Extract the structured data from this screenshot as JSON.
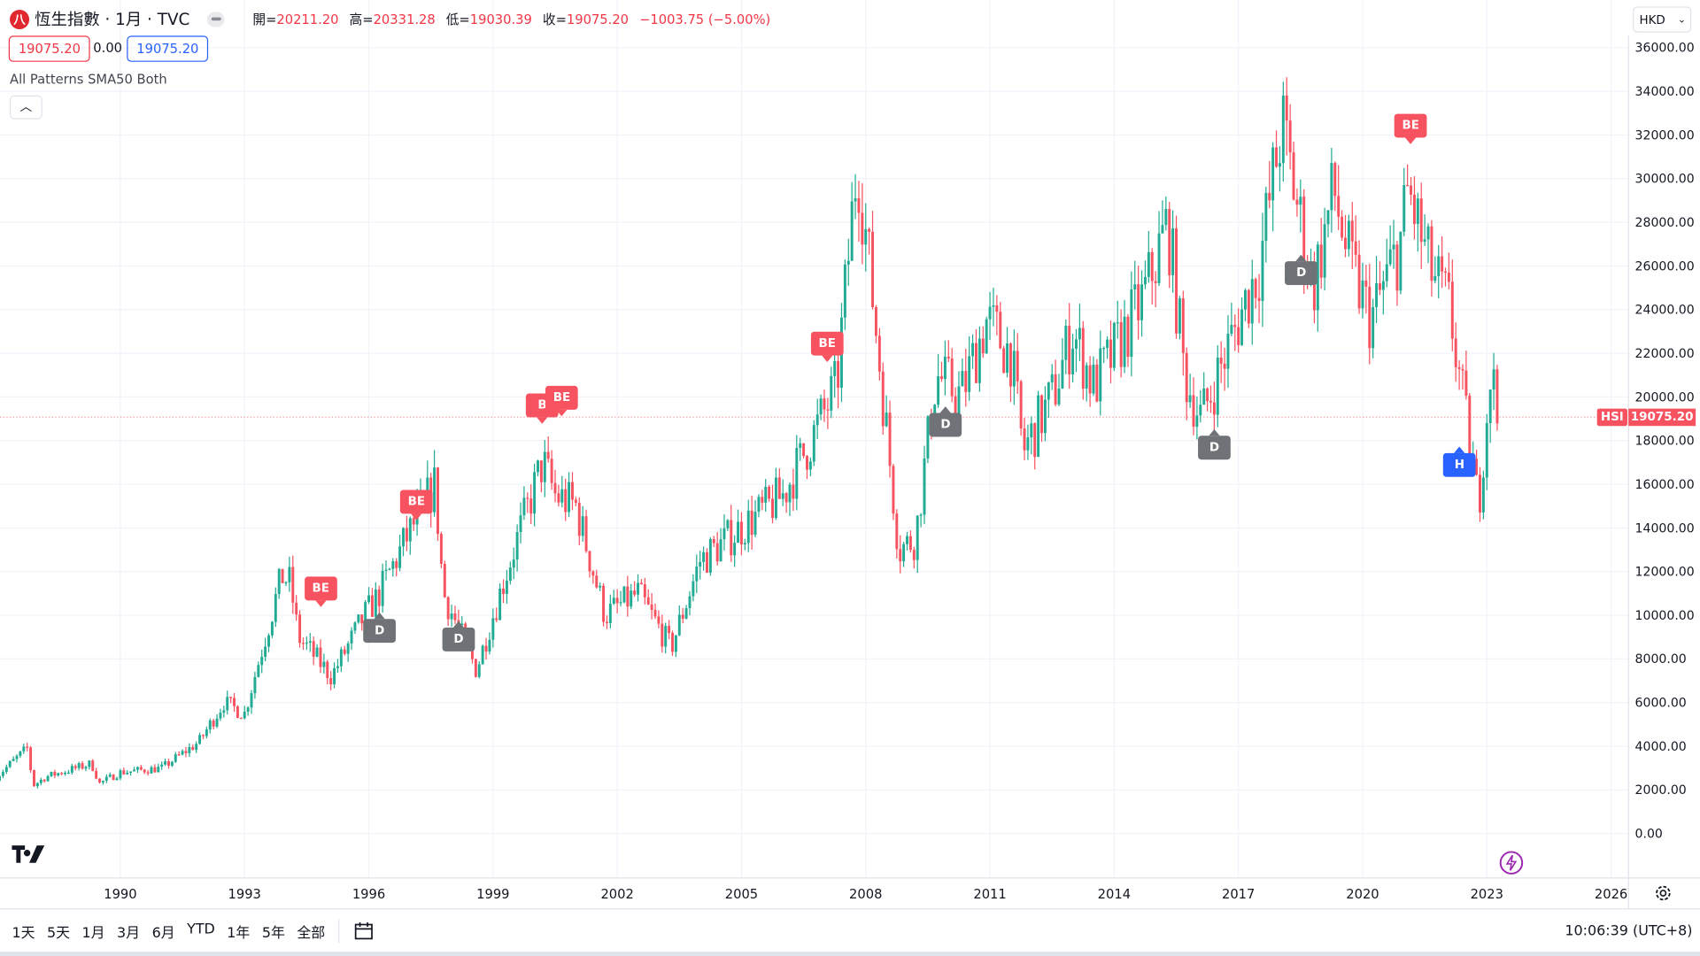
{
  "header": {
    "title": "恆生指數 · 1月 · TVC",
    "logo_letter": "八",
    "ohlc": [
      {
        "label": "開=",
        "value": "20211.20"
      },
      {
        "label": "高=",
        "value": "20331.28"
      },
      {
        "label": "低=",
        "value": "19030.39"
      },
      {
        "label": "收=",
        "value": "19075.20"
      }
    ],
    "change": "−1003.75 (−5.00%)",
    "sell_price": "19075.20",
    "spread": "0.00",
    "buy_price": "19075.20"
  },
  "indicator": {
    "name": "All Patterns SMA50 Both",
    "collapse_icon": "chevron-up-icon"
  },
  "currency": "HKD",
  "price_label": {
    "symbol": "HSI",
    "value": "19075.20"
  },
  "colors": {
    "up": "#22ab94",
    "down": "#f7525f",
    "gray": "#6f7378",
    "blue": "#2962ff",
    "accent": "#f23645"
  },
  "bottom": {
    "ranges": [
      "1天",
      "5天",
      "1月",
      "3月",
      "6月",
      "YTD",
      "1年",
      "5年",
      "全部"
    ],
    "clock": "10:06:39 (UTC+8)"
  },
  "chart_data": {
    "type": "candlestick",
    "x_ticks": [
      "1990",
      "1993",
      "1996",
      "1999",
      "2002",
      "2005",
      "2008",
      "2011",
      "2014",
      "2017",
      "2020",
      "2023",
      "2026"
    ],
    "y_ticks": [
      "0.00",
      "2000.00",
      "4000.00",
      "6000.00",
      "8000.00",
      "10000.00",
      "12000.00",
      "14000.00",
      "16000.00",
      "18000.00",
      "20000.00",
      "22000.00",
      "24000.00",
      "26000.00",
      "28000.00",
      "30000.00",
      "32000.00",
      "34000.00",
      "36000.00"
    ],
    "ylim": [
      0,
      36000
    ],
    "xlim": [
      1987,
      2026.5
    ],
    "grid": true,
    "price_path": [
      [
        1987.0,
        2600
      ],
      [
        1987.75,
        3900
      ],
      [
        1987.9,
        2200
      ],
      [
        1988.2,
        2600
      ],
      [
        1989.3,
        3200
      ],
      [
        1989.5,
        2300
      ],
      [
        1990,
        2800
      ],
      [
        1991,
        3000
      ],
      [
        1991.9,
        4200
      ],
      [
        1992.5,
        6000
      ],
      [
        1993,
        5500
      ],
      [
        1993.9,
        11800
      ],
      [
        1994.1,
        11500
      ],
      [
        1994.3,
        9000
      ],
      [
        1995.1,
        7200
      ],
      [
        1995.9,
        10000
      ],
      [
        1996.2,
        10800
      ],
      [
        1996.9,
        13500
      ],
      [
        1997.6,
        16000
      ],
      [
        1997.8,
        11000
      ],
      [
        1998.6,
        7500
      ],
      [
        1999,
        10000
      ],
      [
        1999.5,
        13000
      ],
      [
        2000.2,
        17000
      ],
      [
        2000.5,
        15500
      ],
      [
        2001,
        15000
      ],
      [
        2001.7,
        10000
      ],
      [
        2002.5,
        11000
      ],
      [
        2003.3,
        8500
      ],
      [
        2004,
        12500
      ],
      [
        2005,
        14000
      ],
      [
        2006,
        15500
      ],
      [
        2006.8,
        18500
      ],
      [
        2007.3,
        20500
      ],
      [
        2007.8,
        31000
      ],
      [
        2008.2,
        24000
      ],
      [
        2008.8,
        13000
      ],
      [
        2009.2,
        13500
      ],
      [
        2009.7,
        21000
      ],
      [
        2010.3,
        20000
      ],
      [
        2010.9,
        23500
      ],
      [
        2011.5,
        22000
      ],
      [
        2011.8,
        17500
      ],
      [
        2012.5,
        20000
      ],
      [
        2013,
        23000
      ],
      [
        2013.5,
        20500
      ],
      [
        2014,
        22000
      ],
      [
        2014.7,
        24500
      ],
      [
        2015.3,
        28000
      ],
      [
        2015.7,
        21000
      ],
      [
        2016.1,
        19000
      ],
      [
        2016.8,
        22500
      ],
      [
        2017.5,
        26000
      ],
      [
        2018.05,
        32500
      ],
      [
        2018.8,
        25000
      ],
      [
        2019.3,
        29500
      ],
      [
        2019.7,
        26000
      ],
      [
        2020.2,
        23500
      ],
      [
        2020.9,
        27000
      ],
      [
        2021.1,
        29500
      ],
      [
        2021.6,
        26000
      ],
      [
        2022.1,
        24000
      ],
      [
        2022.8,
        15000
      ],
      [
        2023.1,
        21500
      ],
      [
        2023.25,
        19075.2
      ]
    ],
    "patterns": [
      {
        "label": "BE",
        "type": "bearish",
        "year": 1994.84,
        "price": 11222
      },
      {
        "label": "D",
        "type": "neutral",
        "year": 1996.26,
        "price": 9285
      },
      {
        "label": "BE",
        "type": "bearish",
        "year": 1997.15,
        "price": 15187
      },
      {
        "label": "D",
        "type": "neutral",
        "year": 1998.17,
        "price": 8888
      },
      {
        "label": "B",
        "type": "bearish",
        "year": 2000.19,
        "price": 19613
      },
      {
        "label": "BE",
        "type": "bearish",
        "year": 2000.66,
        "price": 19960
      },
      {
        "label": "BE",
        "type": "bearish",
        "year": 2007.07,
        "price": 22443
      },
      {
        "label": "D",
        "type": "neutral",
        "year": 2009.93,
        "price": 18719
      },
      {
        "label": "D",
        "type": "neutral",
        "year": 2016.42,
        "price": 17676
      },
      {
        "label": "D",
        "type": "neutral",
        "year": 2018.52,
        "price": 25670
      },
      {
        "label": "BE",
        "type": "bearish",
        "year": 2021.16,
        "price": 32433
      },
      {
        "label": "H",
        "type": "bullish",
        "year": 2022.34,
        "price": 16882
      }
    ]
  }
}
